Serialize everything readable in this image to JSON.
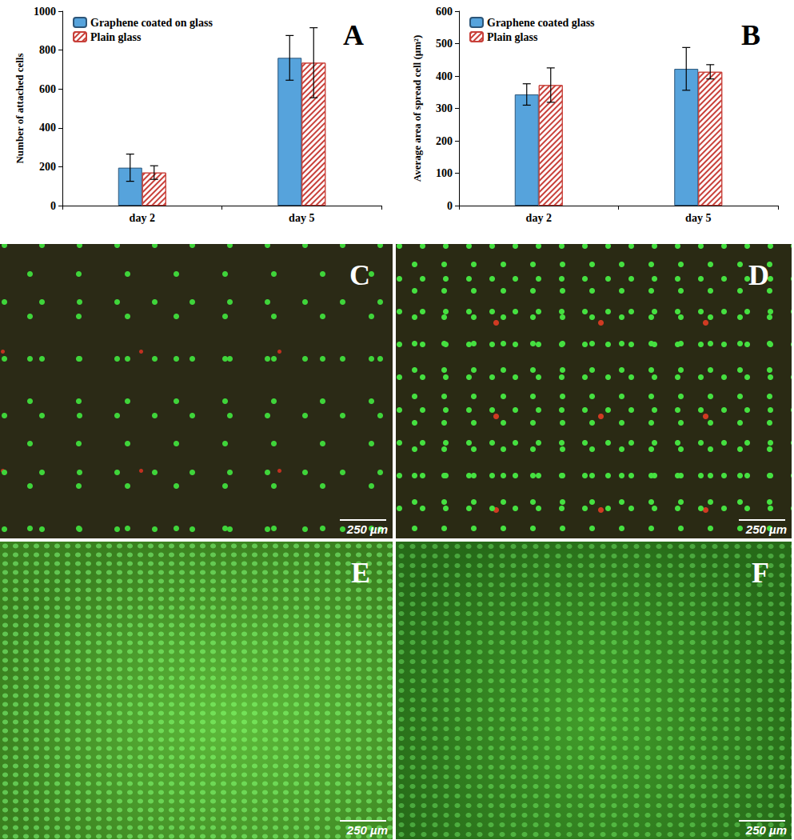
{
  "chart_data": [
    {
      "type": "bar",
      "annotations": [
        "A"
      ],
      "y_label": "Number of attached cells",
      "categories": [
        "day 2",
        "day 5"
      ],
      "series": [
        {
          "name": "Graphene coated on glass",
          "color": "#56a3dc",
          "marker": "solid",
          "values": [
            195,
            760
          ],
          "errors": [
            70,
            115
          ]
        },
        {
          "name": "Plain glass",
          "color": "#c8403a",
          "marker": "hatch",
          "values": [
            170,
            735
          ],
          "errors": [
            35,
            180
          ]
        }
      ],
      "ylim": [
        0,
        1000
      ],
      "yticks": [
        0,
        200,
        400,
        600,
        800,
        1000
      ],
      "grid": false,
      "legend": "upper-left"
    },
    {
      "type": "bar",
      "annotations": [
        "B"
      ],
      "y_label": "Average area of spread cell (µm²)",
      "categories": [
        "day 2",
        "day 5"
      ],
      "series": [
        {
          "name": "Graphene coated glass",
          "color": "#56a3dc",
          "marker": "solid",
          "values": [
            343,
            422
          ],
          "errors": [
            33,
            66
          ]
        },
        {
          "name": "Plain glass",
          "color": "#c8403a",
          "marker": "hatch",
          "values": [
            372,
            413
          ],
          "errors": [
            53,
            22
          ]
        }
      ],
      "ylim": [
        0,
        600
      ],
      "yticks": [
        0,
        100,
        200,
        300,
        400,
        500,
        600
      ],
      "grid": false,
      "legend": "upper-left"
    }
  ],
  "images": [
    {
      "label": "C",
      "scale_bar": "250 µm"
    },
    {
      "label": "D",
      "scale_bar": "250 µm"
    },
    {
      "label": "E",
      "scale_bar": "250 µm"
    },
    {
      "label": "F",
      "scale_bar": "250 µm"
    }
  ]
}
